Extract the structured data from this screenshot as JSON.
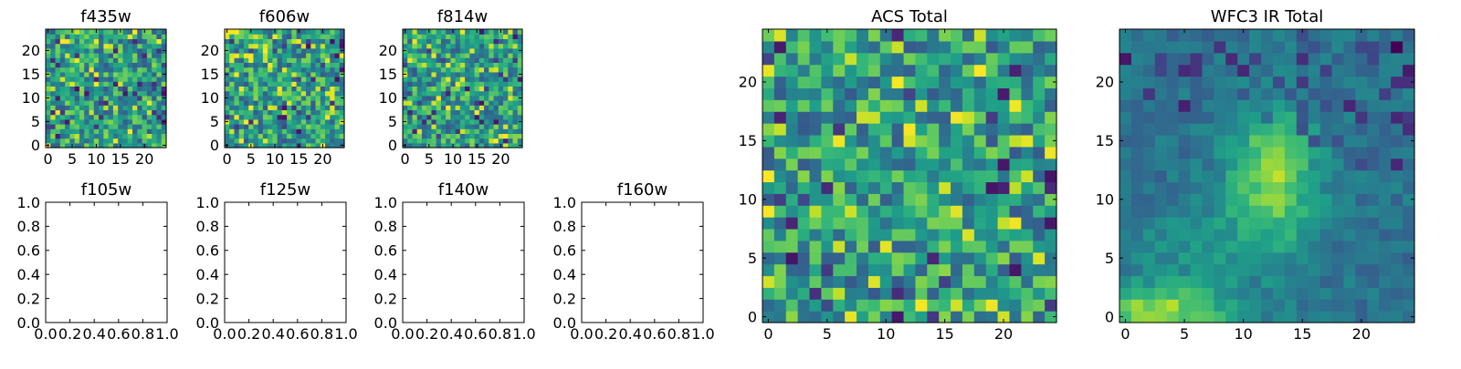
{
  "chart_data": [
    {
      "type": "heatmap",
      "title": "f435w",
      "colormap": "viridis",
      "data_extent": [
        -0.5,
        24.5
      ],
      "xticks": [
        0,
        5,
        10,
        15,
        20
      ],
      "yticks": [
        0,
        5,
        10,
        15,
        20
      ],
      "texture": "noise",
      "grid": false
    },
    {
      "type": "heatmap",
      "title": "f606w",
      "colormap": "viridis",
      "data_extent": [
        -0.5,
        24.5
      ],
      "xticks": [
        0,
        5,
        10,
        15,
        20
      ],
      "yticks": [
        0,
        5,
        10,
        15,
        20
      ],
      "texture": "noise",
      "grid": false
    },
    {
      "type": "heatmap",
      "title": "f814w",
      "colormap": "viridis",
      "data_extent": [
        -0.5,
        24.5
      ],
      "xticks": [
        0,
        5,
        10,
        15,
        20
      ],
      "yticks": [
        0,
        5,
        10,
        15,
        20
      ],
      "texture": "noise",
      "grid": false
    },
    {
      "type": "empty",
      "title": "f105w",
      "xlim": [
        0,
        1
      ],
      "ylim": [
        0,
        1
      ],
      "xticks": [
        "0.0",
        "0.2",
        "0.4",
        "0.6",
        "0.8",
        "1.0"
      ],
      "yticks": [
        "0.0",
        "0.2",
        "0.4",
        "0.6",
        "0.8",
        "1.0"
      ]
    },
    {
      "type": "empty",
      "title": "f125w",
      "xlim": [
        0,
        1
      ],
      "ylim": [
        0,
        1
      ],
      "xticks": [
        "0.0",
        "0.2",
        "0.4",
        "0.6",
        "0.8",
        "1.0"
      ],
      "yticks": [
        "0.0",
        "0.2",
        "0.4",
        "0.6",
        "0.8",
        "1.0"
      ]
    },
    {
      "type": "empty",
      "title": "f140w",
      "xlim": [
        0,
        1
      ],
      "ylim": [
        0,
        1
      ],
      "xticks": [
        "0.0",
        "0.2",
        "0.4",
        "0.6",
        "0.8",
        "1.0"
      ],
      "yticks": [
        "0.0",
        "0.2",
        "0.4",
        "0.6",
        "0.8",
        "1.0"
      ]
    },
    {
      "type": "empty",
      "title": "f160w",
      "xlim": [
        0,
        1
      ],
      "ylim": [
        0,
        1
      ],
      "xticks": [
        "0.0",
        "0.2",
        "0.4",
        "0.6",
        "0.8",
        "1.0"
      ],
      "yticks": [
        "0.0",
        "0.2",
        "0.4",
        "0.6",
        "0.8",
        "1.0"
      ]
    },
    {
      "type": "heatmap",
      "title": "ACS Total",
      "colormap": "viridis",
      "data_extent": [
        -0.5,
        24.5
      ],
      "xticks": [
        0,
        5,
        10,
        15,
        20
      ],
      "yticks": [
        0,
        5,
        10,
        15,
        20
      ],
      "texture": "noise",
      "grid": false
    },
    {
      "type": "heatmap",
      "title": "WFC3 IR Total",
      "colormap": "viridis",
      "data_extent": [
        -0.5,
        24.5
      ],
      "xticks": [
        0,
        5,
        10,
        15,
        20
      ],
      "yticks": [
        0,
        5,
        10,
        15,
        20
      ],
      "texture": "source",
      "grid": false
    }
  ]
}
